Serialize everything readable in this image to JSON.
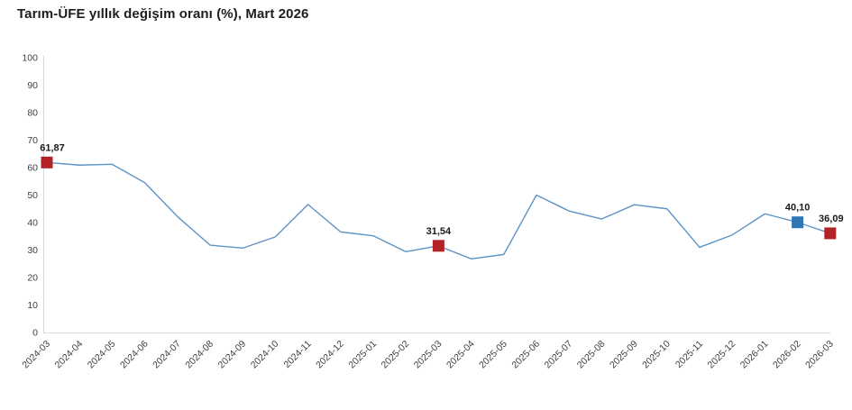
{
  "title": "Tarım-ÜFE yıllık değişim oranı (%), Mart 2026",
  "colors": {
    "line": "#5e94c5",
    "marker_red": "#b22328",
    "marker_blue": "#2e77b5",
    "axis": "#d8d8d8",
    "tick_text": "#3f3f3f",
    "title_text": "#1e1e1e",
    "annotation_text": "#1a1a1a"
  },
  "chart_data": {
    "type": "line",
    "title": "Tarım-ÜFE yıllık değişim oranı (%), Mart 2026",
    "xlabel": "",
    "ylabel": "",
    "ylim": [
      0,
      100
    ],
    "ytick_step": 10,
    "grid": false,
    "legend": "none",
    "categories": [
      "2024-03",
      "2024-04",
      "2024-05",
      "2024-06",
      "2024-07",
      "2024-08",
      "2024-09",
      "2024-10",
      "2024-11",
      "2024-12",
      "2025-01",
      "2025-02",
      "2025-03",
      "2025-04",
      "2025-05",
      "2025-06",
      "2025-07",
      "2025-08",
      "2025-09",
      "2025-10",
      "2025-11",
      "2025-12",
      "2026-01",
      "2026-02",
      "2026-03"
    ],
    "values": [
      61.87,
      60.9,
      61.2,
      54.5,
      42.2,
      31.8,
      30.7,
      34.8,
      46.6,
      36.6,
      35.2,
      29.4,
      31.54,
      26.8,
      28.4,
      50.0,
      44.2,
      41.3,
      46.5,
      45.0,
      31.0,
      35.5,
      43.2,
      40.1,
      36.09
    ],
    "markers": [
      {
        "index": 0,
        "label": "61,87",
        "color": "red",
        "label_dx": 6
      },
      {
        "index": 12,
        "label": "31,54",
        "color": "red",
        "label_dx": 0
      },
      {
        "index": 23,
        "label": "40,10",
        "color": "blue",
        "label_dx": 0
      },
      {
        "index": 24,
        "label": "36,09",
        "color": "red",
        "label_dx": 1
      }
    ]
  }
}
